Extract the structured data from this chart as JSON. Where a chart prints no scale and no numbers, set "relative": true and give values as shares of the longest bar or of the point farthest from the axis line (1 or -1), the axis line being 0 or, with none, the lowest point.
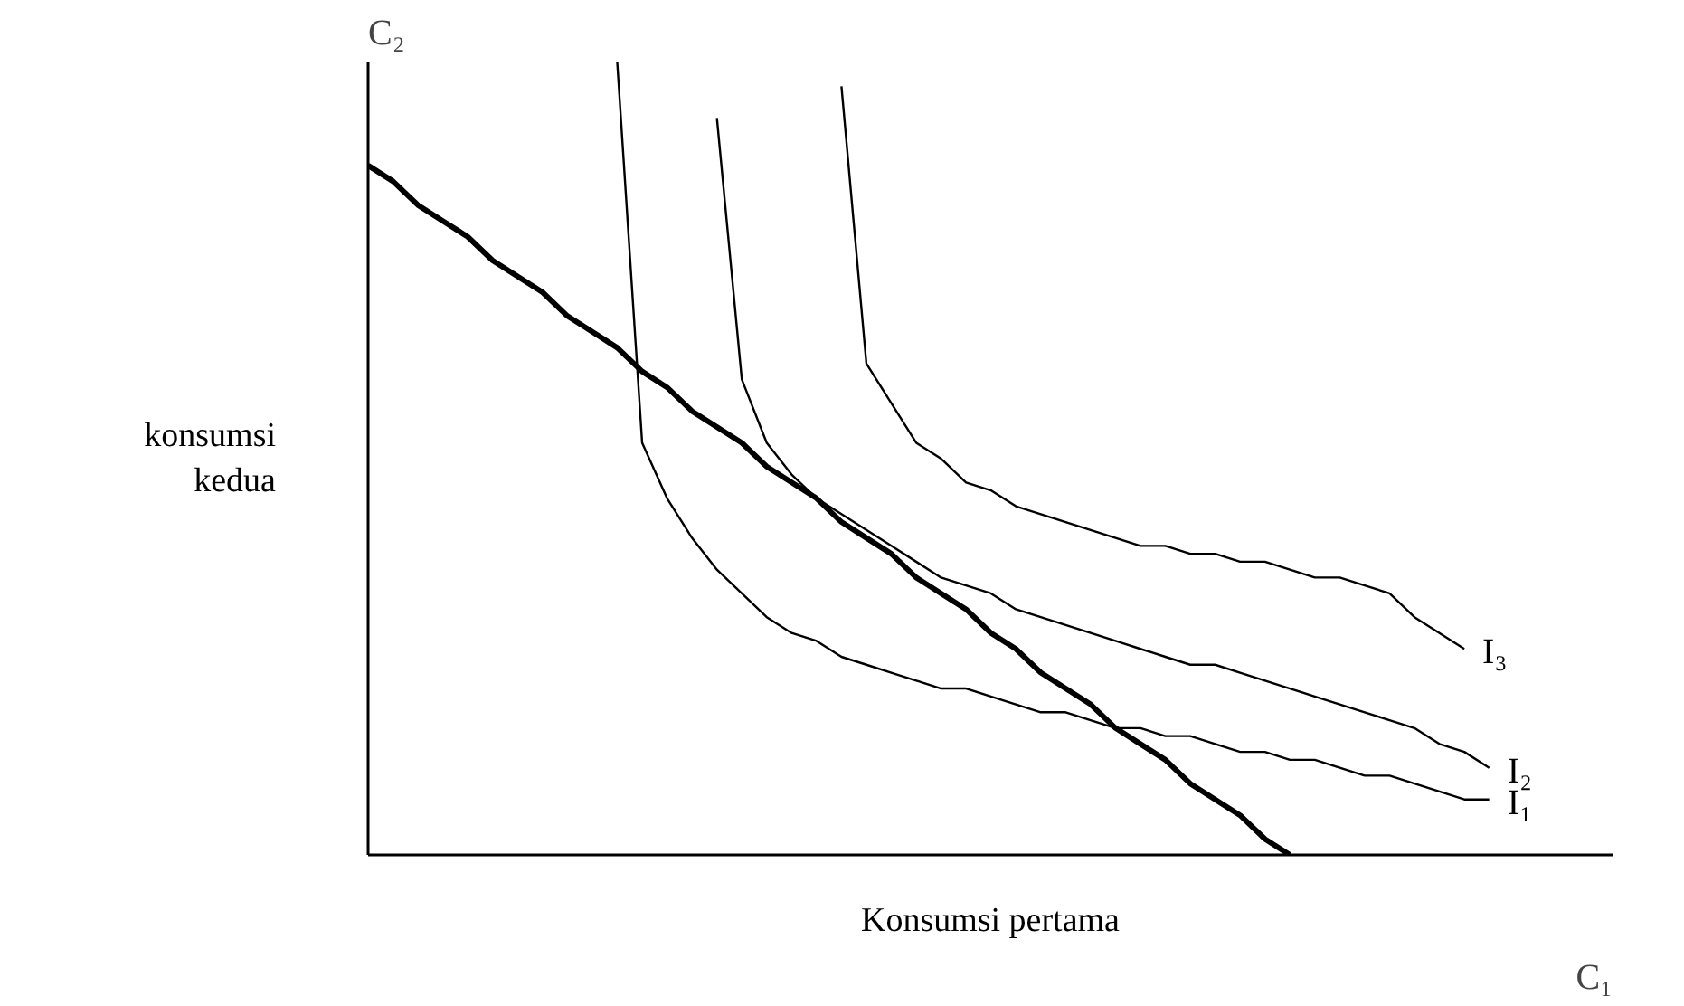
{
  "chart_data": {
    "type": "line",
    "relative": true,
    "xlabel": "Konsumsi pertama",
    "ylabel": "konsumsi kedua",
    "annotations": [
      "C₂",
      "C₁"
    ],
    "line_style": "solid",
    "categories": [
      null,
      null,
      null,
      null,
      null,
      null,
      null,
      null,
      null,
      null,
      null,
      null,
      null,
      null,
      null,
      null,
      null,
      null,
      null,
      null,
      null,
      null,
      null,
      null,
      null,
      null,
      null,
      null,
      null,
      null,
      null,
      null,
      null,
      null,
      null,
      null,
      null,
      null,
      null,
      null,
      null,
      null,
      null,
      null,
      null,
      null
    ],
    "series": [
      {
        "color": "#000000",
        "values": [
          0.87,
          0.85,
          0.82,
          0.8,
          0.78,
          0.75,
          0.73,
          0.71,
          0.68,
          0.66,
          0.64,
          0.61,
          0.59,
          0.56,
          0.54,
          0.52,
          0.49,
          0.47,
          0.45,
          0.42,
          0.4,
          0.38,
          0.35,
          0.33,
          0.31,
          0.28,
          0.26,
          0.23,
          0.21,
          0.19,
          0.16,
          0.14,
          0.12,
          0.09,
          0.07,
          0.05,
          0.02,
          0.0,
          null,
          null,
          null,
          null,
          null,
          null,
          null,
          null
        ]
      },
      {
        "name": "I₁",
        "color": "#000000",
        "values": [
          null,
          null,
          null,
          null,
          null,
          null,
          null,
          null,
          null,
          null,
          1.0,
          0.52,
          0.45,
          0.4,
          0.36,
          0.33,
          0.3,
          0.28,
          0.27,
          0.25,
          0.24,
          0.23,
          0.22,
          0.21,
          0.21,
          0.2,
          0.19,
          0.18,
          0.18,
          0.17,
          0.16,
          0.16,
          0.15,
          0.15,
          0.14,
          0.13,
          0.13,
          0.12,
          0.12,
          0.11,
          0.1,
          0.1,
          0.09,
          0.08,
          0.07,
          0.07
        ]
      },
      {
        "name": "I₂",
        "color": "#000000",
        "values": [
          null,
          null,
          null,
          null,
          null,
          null,
          null,
          null,
          null,
          null,
          null,
          null,
          null,
          null,
          0.93,
          0.6,
          0.52,
          0.48,
          0.45,
          0.43,
          0.41,
          0.39,
          0.37,
          0.35,
          0.34,
          0.33,
          0.31,
          0.3,
          0.29,
          0.28,
          0.27,
          0.26,
          0.25,
          0.24,
          0.24,
          0.23,
          0.22,
          0.21,
          0.2,
          0.19,
          0.18,
          0.17,
          0.16,
          0.14,
          0.13,
          0.11
        ]
      },
      {
        "name": "I₃",
        "color": "#000000",
        "values": [
          null,
          null,
          null,
          null,
          null,
          null,
          null,
          null,
          null,
          null,
          null,
          null,
          null,
          null,
          null,
          null,
          null,
          null,
          null,
          0.97,
          0.62,
          0.57,
          0.52,
          0.5,
          0.47,
          0.46,
          0.44,
          0.43,
          0.42,
          0.41,
          0.4,
          0.39,
          0.39,
          0.38,
          0.38,
          0.37,
          0.37,
          0.36,
          0.35,
          0.35,
          0.34,
          0.33,
          0.3,
          0.28,
          0.26,
          null
        ]
      }
    ]
  }
}
